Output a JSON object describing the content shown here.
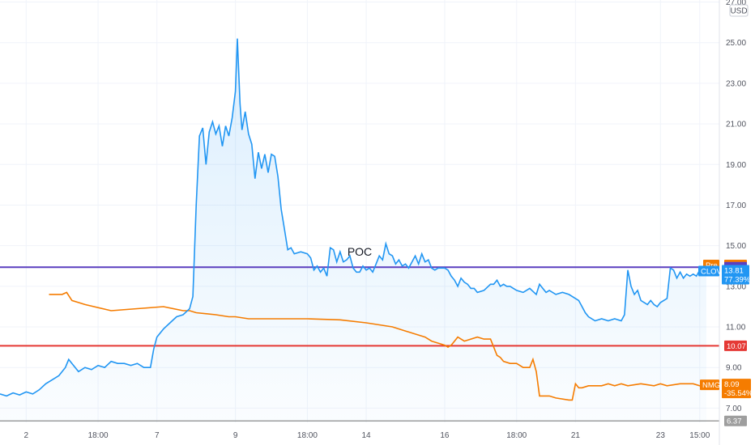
{
  "chart_data": {
    "type": "line",
    "currency": "USD",
    "y_ticks": [
      "7.00",
      "9.00",
      "11.00",
      "13.00",
      "15.00",
      "17.00",
      "19.00",
      "21.00",
      "23.00",
      "25.00",
      "27.00"
    ],
    "y_tick_values": [
      7,
      9,
      11,
      13,
      15,
      17,
      19,
      21,
      23,
      25,
      27
    ],
    "ylim": [
      6.3,
      27.1
    ],
    "x_ticks": [
      {
        "label": "2",
        "t": 4
      },
      {
        "label": "18:00",
        "t": 15
      },
      {
        "label": "7",
        "t": 24
      },
      {
        "label": "9",
        "t": 36
      },
      {
        "label": "18:00",
        "t": 47
      },
      {
        "label": "14",
        "t": 56
      },
      {
        "label": "16",
        "t": 68
      },
      {
        "label": "18:00",
        "t": 79
      },
      {
        "label": "21",
        "t": 88
      },
      {
        "label": "23",
        "t": 101
      },
      {
        "label": "15:00",
        "t": 107
      }
    ],
    "xlim": [
      0,
      110
    ],
    "series": [
      {
        "name": "CLOV",
        "color": "#2196f3",
        "last_value": "13.81",
        "change": "77.39%",
        "points": [
          [
            0,
            7.7
          ],
          [
            1,
            7.6
          ],
          [
            2,
            7.75
          ],
          [
            3,
            7.65
          ],
          [
            4,
            7.8
          ],
          [
            5,
            7.7
          ],
          [
            6,
            7.9
          ],
          [
            7,
            8.2
          ],
          [
            8,
            8.4
          ],
          [
            9,
            8.6
          ],
          [
            10,
            9.0
          ],
          [
            10.5,
            9.4
          ],
          [
            11,
            9.2
          ],
          [
            12,
            8.8
          ],
          [
            13,
            9.0
          ],
          [
            14,
            8.9
          ],
          [
            15,
            9.1
          ],
          [
            16,
            9.0
          ],
          [
            17,
            9.3
          ],
          [
            18,
            9.2
          ],
          [
            19,
            9.2
          ],
          [
            20,
            9.1
          ],
          [
            21,
            9.2
          ],
          [
            22,
            9.0
          ],
          [
            23,
            9.0
          ],
          [
            23.5,
            9.9
          ],
          [
            24,
            10.5
          ],
          [
            25,
            10.9
          ],
          [
            26,
            11.2
          ],
          [
            27,
            11.5
          ],
          [
            28,
            11.6
          ],
          [
            29,
            11.9
          ],
          [
            29.5,
            12.5
          ],
          [
            30,
            17.0
          ],
          [
            30.5,
            20.4
          ],
          [
            31,
            20.8
          ],
          [
            31.5,
            19.0
          ],
          [
            32,
            20.6
          ],
          [
            32.5,
            21.1
          ],
          [
            33,
            20.5
          ],
          [
            33.5,
            20.9
          ],
          [
            34,
            19.9
          ],
          [
            34.5,
            20.9
          ],
          [
            35,
            20.4
          ],
          [
            35.5,
            21.3
          ],
          [
            36,
            22.6
          ],
          [
            36.3,
            25.2
          ],
          [
            36.7,
            22.0
          ],
          [
            37,
            20.7
          ],
          [
            37.5,
            21.6
          ],
          [
            38,
            20.5
          ],
          [
            38.5,
            20.0
          ],
          [
            39,
            18.3
          ],
          [
            39.5,
            19.6
          ],
          [
            40,
            18.8
          ],
          [
            40.5,
            19.5
          ],
          [
            41,
            18.6
          ],
          [
            41.5,
            19.5
          ],
          [
            42,
            19.4
          ],
          [
            42.5,
            18.4
          ],
          [
            43,
            16.8
          ],
          [
            43.5,
            15.8
          ],
          [
            44,
            14.8
          ],
          [
            44.5,
            14.9
          ],
          [
            45,
            14.6
          ],
          [
            46,
            14.7
          ],
          [
            47,
            14.6
          ],
          [
            47.5,
            14.4
          ],
          [
            48,
            13.8
          ],
          [
            48.5,
            14.0
          ],
          [
            49,
            13.7
          ],
          [
            49.5,
            13.9
          ],
          [
            50,
            13.5
          ],
          [
            50.5,
            14.9
          ],
          [
            51,
            14.8
          ],
          [
            51.5,
            14.2
          ],
          [
            52,
            14.7
          ],
          [
            52.5,
            14.2
          ],
          [
            53,
            14.3
          ],
          [
            53.5,
            14.5
          ],
          [
            54,
            13.9
          ],
          [
            54.5,
            13.7
          ],
          [
            55,
            13.7
          ],
          [
            55.5,
            14.0
          ],
          [
            56,
            13.8
          ],
          [
            56.5,
            13.9
          ],
          [
            57,
            13.7
          ],
          [
            57.5,
            14.1
          ],
          [
            58,
            14.5
          ],
          [
            58.5,
            14.3
          ],
          [
            59,
            15.1
          ],
          [
            59.5,
            14.6
          ],
          [
            60,
            14.5
          ],
          [
            60.5,
            14.1
          ],
          [
            61,
            14.3
          ],
          [
            61.5,
            14.0
          ],
          [
            62,
            14.1
          ],
          [
            62.5,
            13.9
          ],
          [
            63,
            14.2
          ],
          [
            63.5,
            14.5
          ],
          [
            64,
            14.1
          ],
          [
            64.5,
            14.6
          ],
          [
            65,
            14.2
          ],
          [
            65.5,
            14.3
          ],
          [
            66,
            13.9
          ],
          [
            66.5,
            13.8
          ],
          [
            67,
            13.9
          ],
          [
            68,
            13.9
          ],
          [
            68.5,
            13.8
          ],
          [
            69,
            13.5
          ],
          [
            69.5,
            13.3
          ],
          [
            70,
            13.0
          ],
          [
            70.5,
            13.4
          ],
          [
            71,
            13.2
          ],
          [
            71.5,
            13.1
          ],
          [
            72,
            12.9
          ],
          [
            72.5,
            12.9
          ],
          [
            73,
            12.7
          ],
          [
            74,
            12.8
          ],
          [
            75,
            13.1
          ],
          [
            75.5,
            13.1
          ],
          [
            76,
            13.3
          ],
          [
            76.5,
            13.0
          ],
          [
            77,
            13.1
          ],
          [
            77.5,
            13.0
          ],
          [
            78,
            13.0
          ],
          [
            78.5,
            12.9
          ],
          [
            79,
            12.8
          ],
          [
            80,
            12.7
          ],
          [
            81,
            12.9
          ],
          [
            82,
            12.6
          ],
          [
            82.5,
            13.1
          ],
          [
            83,
            12.9
          ],
          [
            83.5,
            12.7
          ],
          [
            84,
            12.8
          ],
          [
            85,
            12.6
          ],
          [
            86,
            12.7
          ],
          [
            87,
            12.6
          ],
          [
            88,
            12.4
          ],
          [
            88.5,
            12.3
          ],
          [
            89,
            12.0
          ],
          [
            89.5,
            11.7
          ],
          [
            90,
            11.5
          ],
          [
            91,
            11.3
          ],
          [
            92,
            11.4
          ],
          [
            93,
            11.3
          ],
          [
            94,
            11.4
          ],
          [
            95,
            11.3
          ],
          [
            95.5,
            11.6
          ],
          [
            96,
            13.8
          ],
          [
            96.5,
            13.0
          ],
          [
            97,
            12.6
          ],
          [
            97.5,
            12.8
          ],
          [
            98,
            12.3
          ],
          [
            98.5,
            12.2
          ],
          [
            99,
            12.1
          ],
          [
            99.5,
            12.3
          ],
          [
            100,
            12.1
          ],
          [
            100.5,
            12.0
          ],
          [
            101,
            12.2
          ],
          [
            102,
            12.4
          ],
          [
            102.5,
            13.9
          ],
          [
            103,
            13.8
          ],
          [
            103.5,
            13.4
          ],
          [
            104,
            13.7
          ],
          [
            104.5,
            13.4
          ],
          [
            105,
            13.6
          ],
          [
            105.5,
            13.5
          ],
          [
            106,
            13.6
          ],
          [
            106.5,
            13.5
          ],
          [
            107,
            13.8
          ],
          [
            108,
            13.81
          ]
        ]
      },
      {
        "name": "NMG",
        "color": "#f57c00",
        "last_value": "8.09",
        "change": "-35.54%",
        "points": [
          [
            7.5,
            12.6
          ],
          [
            9.5,
            12.6
          ],
          [
            10.2,
            12.7
          ],
          [
            11,
            12.3
          ],
          [
            12,
            12.2
          ],
          [
            13,
            12.1
          ],
          [
            17,
            11.8
          ],
          [
            21,
            11.9
          ],
          [
            25,
            12.0
          ],
          [
            28,
            11.8
          ],
          [
            29,
            11.8
          ],
          [
            30,
            11.7
          ],
          [
            33,
            11.6
          ],
          [
            35,
            11.5
          ],
          [
            36,
            11.5
          ],
          [
            38,
            11.4
          ],
          [
            42,
            11.4
          ],
          [
            47,
            11.4
          ],
          [
            52,
            11.35
          ],
          [
            56,
            11.2
          ],
          [
            60,
            11.0
          ],
          [
            62,
            10.8
          ],
          [
            64,
            10.6
          ],
          [
            65,
            10.5
          ],
          [
            66,
            10.3
          ],
          [
            67,
            10.2
          ],
          [
            68,
            10.1
          ],
          [
            68.5,
            10.0
          ],
          [
            69,
            10.1
          ],
          [
            69.5,
            10.3
          ],
          [
            70,
            10.5
          ],
          [
            70.5,
            10.4
          ],
          [
            71,
            10.3
          ],
          [
            73,
            10.5
          ],
          [
            74,
            10.4
          ],
          [
            75,
            10.4
          ],
          [
            75.5,
            10.0
          ],
          [
            76,
            9.6
          ],
          [
            76.5,
            9.5
          ],
          [
            77,
            9.3
          ],
          [
            78,
            9.2
          ],
          [
            79,
            9.2
          ],
          [
            80,
            9.0
          ],
          [
            81,
            9.0
          ],
          [
            81.5,
            9.4
          ],
          [
            82,
            8.8
          ],
          [
            82.5,
            7.6
          ],
          [
            84,
            7.6
          ],
          [
            85,
            7.5
          ],
          [
            87,
            7.4
          ],
          [
            87.5,
            7.4
          ],
          [
            88,
            8.2
          ],
          [
            88.5,
            8.0
          ],
          [
            89,
            8.0
          ],
          [
            90,
            8.1
          ],
          [
            92,
            8.1
          ],
          [
            93,
            8.2
          ],
          [
            94,
            8.1
          ],
          [
            95,
            8.2
          ],
          [
            96,
            8.1
          ],
          [
            98,
            8.2
          ],
          [
            100,
            8.1
          ],
          [
            101,
            8.2
          ],
          [
            102,
            8.1
          ],
          [
            104,
            8.2
          ],
          [
            106,
            8.2
          ],
          [
            107,
            8.1
          ],
          [
            108,
            8.09
          ]
        ]
      }
    ],
    "horizontal_lines": [
      {
        "label": "13.94",
        "value": 13.94,
        "color": "#5b3fbf"
      },
      {
        "label": "10.07",
        "value": 10.07,
        "color": "#e53935"
      },
      {
        "label": "6.37",
        "value": 6.37,
        "color": "#9e9e9e"
      }
    ],
    "pre_tag": {
      "label": "Pre",
      "value_label": "14.05",
      "value": 14.05,
      "color": "#f57c00"
    },
    "annotations": [
      {
        "text": "POC",
        "t": 55,
        "value": 14.5
      }
    ]
  }
}
